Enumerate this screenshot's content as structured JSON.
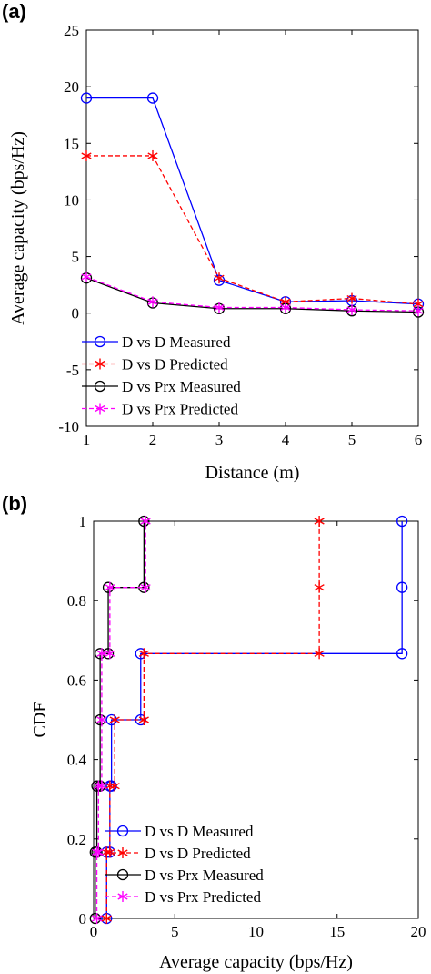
{
  "chart_data": [
    {
      "panel_label": "(a)",
      "type": "line",
      "xlabel": "Distance (m)",
      "ylabel": "Average capacity (bps/Hz)",
      "xlim": [
        1,
        6
      ],
      "ylim": [
        -10,
        25
      ],
      "xticks": [
        1,
        2,
        3,
        4,
        5,
        6
      ],
      "yticks": [
        -10,
        -5,
        0,
        5,
        10,
        15,
        20,
        25
      ],
      "x": [
        1,
        2,
        3,
        4,
        5,
        6
      ],
      "series": [
        {
          "name": "D vs D Measured",
          "color": "#0000ff",
          "marker": "circle",
          "dash": "solid",
          "values": [
            19.0,
            19.0,
            2.9,
            1.0,
            1.1,
            0.8
          ]
        },
        {
          "name": "D vs D Predicted",
          "color": "#ff0000",
          "marker": "asterisk",
          "dash": "dashed",
          "values": [
            13.9,
            13.9,
            3.1,
            1.0,
            1.3,
            0.8
          ]
        },
        {
          "name": "D vs Prx Measured",
          "color": "#000000",
          "marker": "circle",
          "dash": "solid",
          "values": [
            3.1,
            0.9,
            0.4,
            0.4,
            0.2,
            0.1
          ]
        },
        {
          "name": "D vs Prx Predicted",
          "color": "#ff00ff",
          "marker": "asterisk",
          "dash": "dashed",
          "values": [
            3.2,
            1.0,
            0.5,
            0.5,
            0.3,
            0.2
          ]
        }
      ],
      "legend": "bottom-left",
      "grid": false
    },
    {
      "panel_label": "(b)",
      "type": "line",
      "xlabel": "Average capacity (bps/Hz)",
      "ylabel": "CDF",
      "xlim": [
        0,
        20
      ],
      "ylim": [
        0,
        1
      ],
      "xticks": [
        0,
        5,
        10,
        15,
        20
      ],
      "yticks": [
        0,
        0.2,
        0.4,
        0.6,
        0.8,
        1
      ],
      "series": [
        {
          "name": "D vs D Measured",
          "color": "#0000ff",
          "marker": "circle",
          "dash": "solid",
          "points": [
            [
              0.8,
              0
            ],
            [
              0.8,
              0.1667
            ],
            [
              1.0,
              0.1667
            ],
            [
              1.0,
              0.3333
            ],
            [
              1.1,
              0.3333
            ],
            [
              1.1,
              0.5
            ],
            [
              2.9,
              0.5
            ],
            [
              2.9,
              0.6667
            ],
            [
              19.0,
              0.6667
            ],
            [
              19.0,
              0.8333
            ],
            [
              19.0,
              1.0
            ]
          ]
        },
        {
          "name": "D vs D Predicted",
          "color": "#ff0000",
          "marker": "asterisk",
          "dash": "dashed",
          "points": [
            [
              0.8,
              0
            ],
            [
              0.8,
              0.1667
            ],
            [
              1.0,
              0.1667
            ],
            [
              1.0,
              0.3333
            ],
            [
              1.3,
              0.3333
            ],
            [
              1.3,
              0.5
            ],
            [
              3.1,
              0.5
            ],
            [
              3.1,
              0.6667
            ],
            [
              13.9,
              0.6667
            ],
            [
              13.9,
              0.8333
            ],
            [
              13.9,
              1.0
            ]
          ]
        },
        {
          "name": "D vs Prx Measured",
          "color": "#000000",
          "marker": "circle",
          "dash": "solid",
          "points": [
            [
              0.1,
              0
            ],
            [
              0.1,
              0.1667
            ],
            [
              0.2,
              0.1667
            ],
            [
              0.2,
              0.3333
            ],
            [
              0.4,
              0.3333
            ],
            [
              0.4,
              0.5
            ],
            [
              0.4,
              0.6667
            ],
            [
              0.9,
              0.6667
            ],
            [
              0.9,
              0.8333
            ],
            [
              3.1,
              0.8333
            ],
            [
              3.1,
              1.0
            ]
          ]
        },
        {
          "name": "D vs Prx Predicted",
          "color": "#ff00ff",
          "marker": "asterisk",
          "dash": "dashed",
          "points": [
            [
              0.2,
              0
            ],
            [
              0.2,
              0.1667
            ],
            [
              0.3,
              0.1667
            ],
            [
              0.3,
              0.3333
            ],
            [
              0.5,
              0.3333
            ],
            [
              0.5,
              0.5
            ],
            [
              0.5,
              0.6667
            ],
            [
              1.0,
              0.6667
            ],
            [
              1.0,
              0.8333
            ],
            [
              3.2,
              0.8333
            ],
            [
              3.2,
              1.0
            ]
          ]
        }
      ],
      "legend": "bottom-left",
      "grid": false
    }
  ]
}
